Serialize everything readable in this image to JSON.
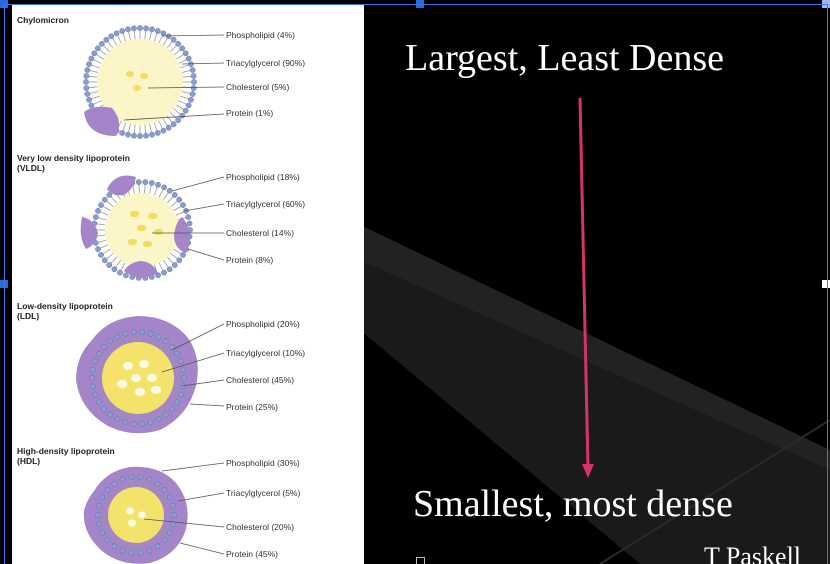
{
  "slide": {
    "heading_top": "Largest, Least Dense",
    "heading_bottom": "Smallest, most dense",
    "author": "T Paskell",
    "arrow_color": "#d6336c",
    "background_color": "#000000"
  },
  "figure": {
    "panels": [
      {
        "title": "Chylomicron",
        "components": [
          "Phospholipid (4%)",
          "Triacylglycerol (90%)",
          "Cholesterol (5%)",
          "Protein (1%)"
        ]
      },
      {
        "title": "Very low density lipoprotein\n(VLDL)",
        "components": [
          "Phospholipid (18%)",
          "Triacylglycerol (60%)",
          "Cholesterol (14%)",
          "Protein (8%)"
        ]
      },
      {
        "title": "Low-density lipoprotein\n(LDL)",
        "components": [
          "Phospholipid (20%)",
          "Triacylglycerol (10%)",
          "Cholesterol (45%)",
          "Protein (25%)"
        ]
      },
      {
        "title": "High-density lipoprotein\n(HDL)",
        "components": [
          "Phospholipid (30%)",
          "Triacylglycerol (5%)",
          "Cholesterol (20%)",
          "Protein (45%)"
        ]
      }
    ],
    "colors": {
      "core_light": "#fbf5c8",
      "core_dark": "#f4e36b",
      "protein": "#a585c9",
      "phospholipid_head": "#8a9cd0"
    }
  }
}
